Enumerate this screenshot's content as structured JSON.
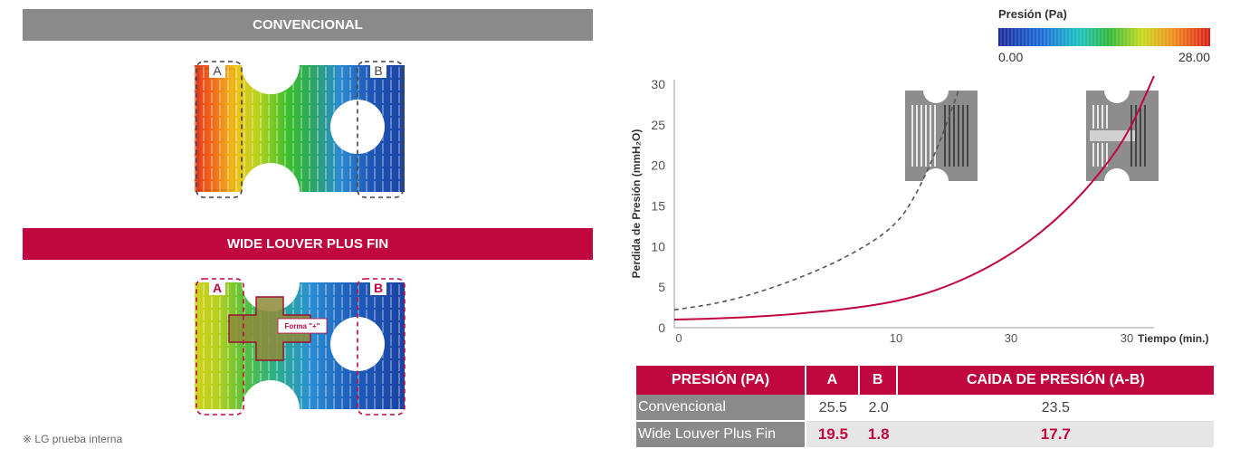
{
  "left": {
    "conventional_title": "CONVENCIONAL",
    "wide_title": "WIDE LOUVER PLUS FIN",
    "label_a": "A",
    "label_b": "B",
    "shape_label": "Forma \"+\"",
    "footnote": "※ LG prueba interna"
  },
  "legend": {
    "title": "Presión (Pa)",
    "min_label": "0.00",
    "max_label": "28.00"
  },
  "chart_data": {
    "type": "line",
    "ylabel": "Perdida de Presión (mmH₂O)",
    "xlabel": "Tiempo (min.)",
    "ylim": [
      0,
      30
    ],
    "y_ticks": [
      0,
      5,
      10,
      15,
      20,
      25,
      30
    ],
    "x_tick_labels": [
      "0",
      "10",
      "30",
      "30"
    ],
    "series": [
      {
        "style": "dashed",
        "color": "#555555",
        "x": [
          0,
          2,
          4,
          6,
          8,
          10,
          12,
          14,
          15.5
        ],
        "y": [
          2.2,
          3.0,
          4.5,
          6.5,
          9.0,
          12.5,
          17.0,
          23.5,
          29.5
        ]
      },
      {
        "style": "solid",
        "color": "#c0073f",
        "x": [
          0,
          3,
          6,
          9,
          12,
          15,
          18,
          21,
          24,
          27,
          30,
          32.5
        ],
        "y": [
          1.0,
          1.2,
          1.8,
          2.7,
          3.9,
          5.4,
          7.4,
          10.0,
          13.4,
          17.8,
          23.5,
          31.0
        ]
      }
    ]
  },
  "table": {
    "headers": [
      "PRESIÓN (PA)",
      "A",
      "B",
      "CAIDA DE PRESIÓN (A-B)"
    ],
    "rows": [
      [
        "Convencional",
        "25.5",
        "2.0",
        "23.5"
      ],
      [
        "Wide Louver Plus Fin",
        "19.5",
        "1.8",
        "17.7"
      ]
    ]
  }
}
